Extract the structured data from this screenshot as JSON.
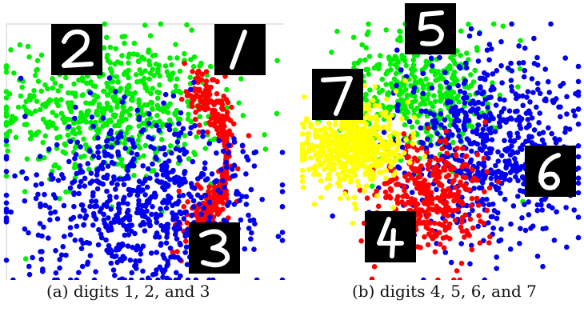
{
  "figure": {
    "captions": {
      "a": "(a) digits 1, 2, and 3",
      "b": "(b) digits 4, 5, 6, and 7"
    }
  },
  "chart_data": [
    {
      "type": "scatter",
      "title": "",
      "xlabel": "",
      "ylabel": "",
      "axes_visible": "left and top frame lines only",
      "grid": false,
      "legend": "none; digit thumbnail images label each cluster",
      "cluster_labels": [
        {
          "digit": "2",
          "color_name": "green"
        },
        {
          "digit": "1",
          "color_name": "red"
        },
        {
          "digit": "3",
          "color_name": "blue"
        }
      ],
      "series": [
        {
          "digit": "2",
          "color": "#00ee00",
          "center_x": 0.38,
          "center_y": 0.67,
          "spread_x": 0.2,
          "spread_y": 0.14,
          "approx_points": 600
        },
        {
          "digit": "1",
          "color": "#ff0000",
          "shape": "arc",
          "arc_center_x": 0.66,
          "arc_center_y": 0.48,
          "arc_radius_x": 0.3,
          "arc_radius_y": 0.28,
          "approx_points": 450
        },
        {
          "digit": "3",
          "color": "#0000ee",
          "center_x": 0.5,
          "center_y": 0.3,
          "spread_x": 0.22,
          "spread_y": 0.17,
          "approx_points": 700
        }
      ]
    },
    {
      "type": "scatter",
      "title": "",
      "xlabel": "",
      "ylabel": "",
      "axes_visible": "none",
      "grid": false,
      "legend": "none; digit thumbnail images label each cluster",
      "cluster_labels": [
        {
          "digit": "5",
          "color_name": "green"
        },
        {
          "digit": "7",
          "color_name": "yellow"
        },
        {
          "digit": "6",
          "color_name": "blue"
        },
        {
          "digit": "4",
          "color_name": "red"
        }
      ],
      "series": [
        {
          "digit": "5",
          "color": "#00ee00",
          "center_x": 0.42,
          "center_y": 0.74,
          "spread_x": 0.14,
          "spread_y": 0.13,
          "approx_points": 450
        },
        {
          "digit": "6",
          "color": "#0000ee",
          "center_x": 0.68,
          "center_y": 0.52,
          "spread_x": 0.17,
          "spread_y": 0.19,
          "approx_points": 650
        },
        {
          "digit": "4",
          "color": "#ff0000",
          "center_x": 0.45,
          "center_y": 0.33,
          "spread_x": 0.1,
          "spread_y": 0.11,
          "approx_points": 350
        },
        {
          "digit": "7",
          "color": "#ffff00",
          "center_x": 0.18,
          "center_y": 0.53,
          "spread_x": 0.09,
          "spread_y": 0.09,
          "approx_points": 550
        }
      ]
    }
  ]
}
